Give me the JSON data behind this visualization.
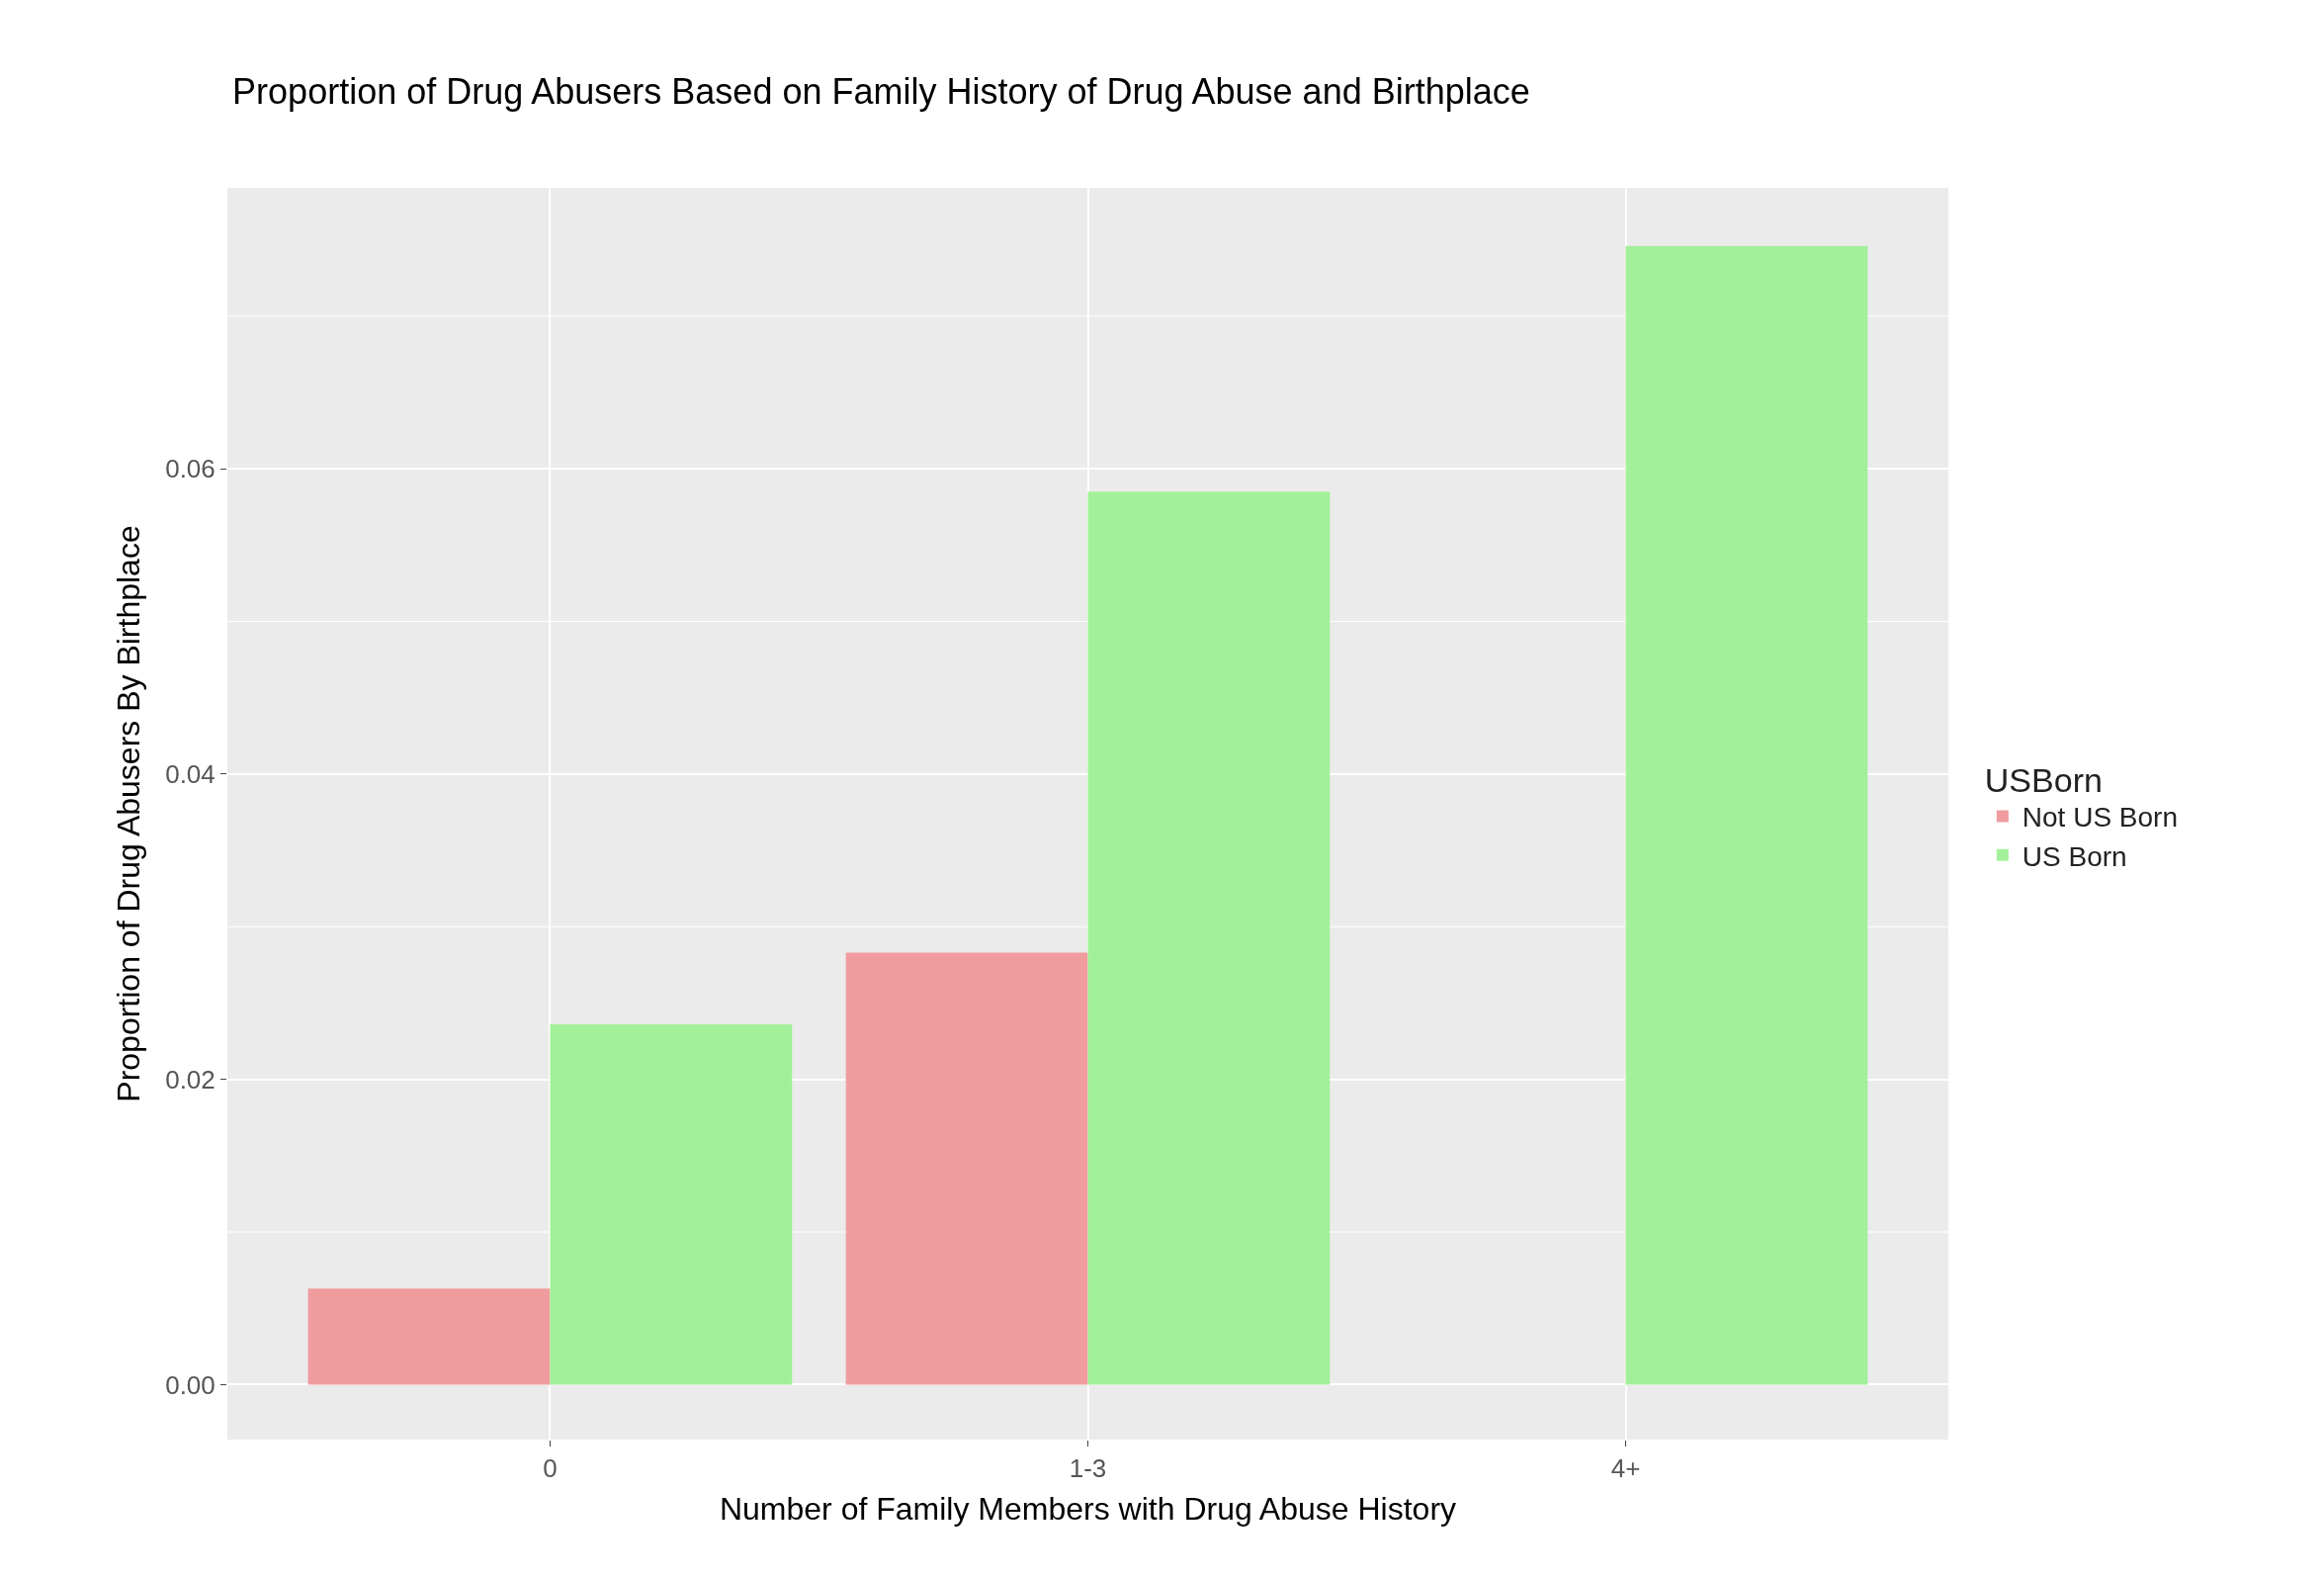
{
  "chart_data": {
    "type": "bar",
    "title": "Proportion of Drug Abusers Based on Family History of Drug Abuse and Birthplace",
    "xlabel": "Number of Family Members with Drug Abuse History",
    "ylabel": "Proportion of Drug Abusers By Birthplace",
    "legend_title": "USBorn",
    "categories": [
      "0",
      "1-3",
      "4+"
    ],
    "series": [
      {
        "name": "Not US Born",
        "color": "#f09c9e",
        "values": [
          0.0063,
          0.0283,
          null
        ]
      },
      {
        "name": "US Born",
        "color": "#a3f09a",
        "values": [
          0.0236,
          0.0585,
          0.0746
        ]
      }
    ],
    "ylim": [
      -0.0036,
      0.0784
    ],
    "yticks": [
      {
        "value": 0,
        "label": "0.00"
      },
      {
        "value": 0.02,
        "label": "0.02"
      },
      {
        "value": 0.04,
        "label": "0.04"
      },
      {
        "value": 0.06,
        "label": "0.06"
      }
    ],
    "grid": true,
    "legend": "right"
  }
}
